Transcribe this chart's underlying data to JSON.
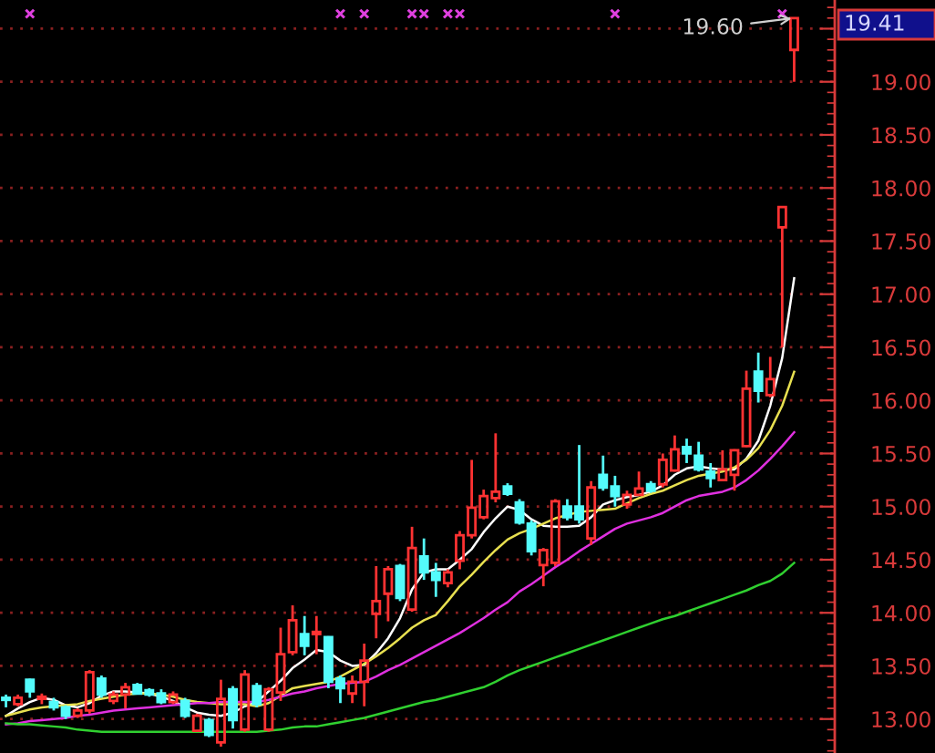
{
  "chart_data": {
    "type": "candlestick",
    "categories": [
      null,
      null,
      null,
      null,
      null,
      null,
      null,
      null,
      null,
      null,
      null,
      null,
      null,
      null,
      null,
      null,
      null,
      null,
      null,
      null,
      null,
      null,
      null,
      null,
      null,
      null,
      null,
      null,
      null,
      null,
      null,
      null,
      null,
      null,
      null,
      null,
      null,
      null,
      null,
      null,
      null,
      null,
      null,
      null,
      null,
      null,
      null,
      null,
      null,
      null,
      null,
      null,
      null,
      null,
      null,
      null,
      null,
      null,
      null,
      null,
      null,
      null,
      null,
      null,
      null,
      null,
      null
    ],
    "ohlc": [
      [
        13.2,
        13.23,
        13.11,
        13.18
      ],
      [
        13.14,
        13.23,
        13.12,
        13.2
      ],
      [
        13.37,
        13.38,
        13.2,
        13.26
      ],
      [
        13.19,
        13.24,
        13.14,
        13.21
      ],
      [
        13.16,
        13.2,
        13.08,
        13.11
      ],
      [
        13.11,
        13.13,
        13.0,
        13.03
      ],
      [
        13.03,
        13.1,
        13.01,
        13.08
      ],
      [
        13.08,
        13.46,
        13.05,
        13.44
      ],
      [
        13.38,
        13.41,
        13.2,
        13.23
      ],
      [
        13.17,
        13.26,
        13.14,
        13.23
      ],
      [
        13.23,
        13.34,
        13.1,
        13.3
      ],
      [
        13.32,
        13.34,
        13.23,
        13.24
      ],
      [
        13.27,
        13.29,
        13.21,
        13.23
      ],
      [
        13.24,
        13.28,
        13.14,
        13.16
      ],
      [
        13.16,
        13.26,
        13.14,
        13.23
      ],
      [
        13.17,
        13.2,
        13.01,
        13.03
      ],
      [
        12.89,
        13.05,
        12.88,
        13.03
      ],
      [
        12.99,
        13.01,
        12.83,
        12.85
      ],
      [
        12.78,
        13.37,
        12.74,
        13.19
      ],
      [
        13.28,
        13.31,
        12.91,
        12.99
      ],
      [
        12.9,
        13.46,
        12.88,
        13.42
      ],
      [
        13.31,
        13.34,
        13.11,
        13.14
      ],
      [
        12.9,
        13.3,
        12.88,
        13.28
      ],
      [
        13.25,
        13.86,
        13.17,
        13.61
      ],
      [
        13.63,
        14.07,
        13.6,
        13.93
      ],
      [
        13.8,
        13.97,
        13.6,
        13.69
      ],
      [
        13.8,
        13.97,
        13.61,
        13.82
      ],
      [
        13.77,
        13.78,
        13.29,
        13.35
      ],
      [
        13.38,
        13.41,
        13.15,
        13.29
      ],
      [
        13.24,
        13.41,
        13.15,
        13.35
      ],
      [
        13.35,
        13.71,
        13.12,
        13.55
      ],
      [
        13.99,
        14.44,
        13.76,
        14.11
      ],
      [
        14.18,
        14.44,
        13.92,
        14.41
      ],
      [
        14.44,
        14.46,
        14.11,
        14.14
      ],
      [
        14.03,
        14.81,
        14.01,
        14.61
      ],
      [
        14.53,
        14.7,
        14.31,
        14.38
      ],
      [
        14.38,
        14.47,
        14.15,
        14.31
      ],
      [
        14.28,
        14.41,
        14.24,
        14.38
      ],
      [
        14.49,
        14.77,
        14.41,
        14.73
      ],
      [
        14.73,
        15.44,
        14.7,
        14.99
      ],
      [
        14.9,
        15.16,
        14.88,
        15.1
      ],
      [
        15.08,
        15.69,
        15.04,
        15.14
      ],
      [
        15.19,
        15.22,
        15.1,
        15.12
      ],
      [
        15.04,
        15.07,
        14.83,
        14.85
      ],
      [
        14.84,
        14.87,
        14.54,
        14.58
      ],
      [
        14.45,
        14.61,
        14.25,
        14.59
      ],
      [
        14.47,
        15.07,
        14.44,
        15.05
      ],
      [
        15.0,
        15.07,
        14.87,
        14.9
      ],
      [
        15.0,
        15.58,
        14.84,
        14.88
      ],
      [
        14.7,
        15.24,
        14.64,
        15.18
      ],
      [
        15.3,
        15.48,
        15.15,
        15.18
      ],
      [
        15.19,
        15.29,
        15.0,
        15.1
      ],
      [
        15.02,
        15.15,
        14.98,
        15.11
      ],
      [
        15.11,
        15.33,
        15.1,
        15.17
      ],
      [
        15.21,
        15.24,
        15.13,
        15.15
      ],
      [
        15.21,
        15.5,
        15.18,
        15.44
      ],
      [
        15.34,
        15.67,
        15.33,
        15.54
      ],
      [
        15.56,
        15.64,
        15.41,
        15.5
      ],
      [
        15.48,
        15.61,
        15.33,
        15.35
      ],
      [
        15.33,
        15.41,
        15.18,
        15.27
      ],
      [
        15.25,
        15.53,
        15.24,
        15.35
      ],
      [
        15.3,
        15.54,
        15.15,
        15.53
      ],
      [
        15.57,
        16.28,
        15.56,
        16.11
      ],
      [
        16.27,
        16.45,
        15.98,
        16.09
      ],
      [
        16.05,
        16.41,
        16.03,
        16.2
      ],
      [
        17.63,
        17.82,
        16.5,
        17.82
      ],
      [
        19.3,
        19.6,
        19.0,
        19.6
      ]
    ],
    "colors": [
      "#54fcfc",
      "#ff3232",
      "#54fcfc",
      "#ff3232",
      "#54fcfc",
      "#54fcfc",
      "#ff3232",
      "#ff3232",
      "#54fcfc",
      "#ff3232",
      "#ff3232",
      "#54fcfc",
      "#54fcfc",
      "#54fcfc",
      "#ff3232",
      "#54fcfc",
      "#ff3232",
      "#54fcfc",
      "#ff3232",
      "#54fcfc",
      "#ff3232",
      "#54fcfc",
      "#ff3232",
      "#ff3232",
      "#ff3232",
      "#54fcfc",
      "#ff3232",
      "#54fcfc",
      "#54fcfc",
      "#ff3232",
      "#ff3232",
      "#ff3232",
      "#ff3232",
      "#54fcfc",
      "#ff3232",
      "#54fcfc",
      "#54fcfc",
      "#ff3232",
      "#ff3232",
      "#ff3232",
      "#ff3232",
      "#ff3232",
      "#54fcfc",
      "#54fcfc",
      "#54fcfc",
      "#ff3232",
      "#ff3232",
      "#54fcfc",
      "#54fcfc",
      "#ff3232",
      "#54fcfc",
      "#54fcfc",
      "#ff3232",
      "#ff3232",
      "#54fcfc",
      "#ff3232",
      "#ff3232",
      "#54fcfc",
      "#54fcfc",
      "#54fcfc",
      "#ff3232",
      "#ff3232",
      "#ff3232",
      "#54fcfc",
      "#ff3232",
      "#ff3232",
      "#ff3232"
    ],
    "series": [
      {
        "type": "line",
        "color": "#ffffff",
        "values": [
          13.03,
          13.1,
          13.16,
          13.2,
          13.18,
          13.13,
          13.11,
          13.15,
          13.22,
          13.26,
          13.26,
          13.25,
          13.24,
          13.21,
          13.17,
          13.11,
          13.06,
          13.04,
          13.03,
          13.06,
          13.12,
          13.16,
          13.26,
          13.36,
          13.48,
          13.56,
          13.65,
          13.63,
          13.55,
          13.5,
          13.51,
          13.62,
          13.76,
          13.95,
          14.22,
          14.38,
          14.41,
          14.41,
          14.5,
          14.6,
          14.76,
          14.89,
          15.0,
          14.97,
          14.88,
          14.82,
          14.81,
          14.81,
          14.82,
          14.9,
          15.02,
          15.06,
          15.09,
          15.11,
          15.14,
          15.2,
          15.3,
          15.36,
          15.38,
          15.36,
          15.35,
          15.35,
          15.45,
          15.62,
          15.95,
          16.4,
          17.15
        ]
      },
      {
        "type": "line",
        "color": "#e8e050",
        "values": [
          13.03,
          13.06,
          13.09,
          13.11,
          13.12,
          13.13,
          13.14,
          13.17,
          13.19,
          13.21,
          13.23,
          13.24,
          13.24,
          13.23,
          13.21,
          13.18,
          13.16,
          13.15,
          13.14,
          13.14,
          13.14,
          13.12,
          13.15,
          13.22,
          13.29,
          13.31,
          13.33,
          13.35,
          13.4,
          13.46,
          13.52,
          13.59,
          13.67,
          13.76,
          13.86,
          13.93,
          13.98,
          14.11,
          14.25,
          14.36,
          14.48,
          14.59,
          14.69,
          14.75,
          14.79,
          14.84,
          14.89,
          14.92,
          14.95,
          14.96,
          14.97,
          14.98,
          15.03,
          15.08,
          15.12,
          15.15,
          15.2,
          15.25,
          15.29,
          15.31,
          15.33,
          15.37,
          15.44,
          15.55,
          15.72,
          15.95,
          16.27
        ]
      },
      {
        "type": "line",
        "color": "#e030e0",
        "values": [
          12.95,
          12.96,
          12.98,
          12.99,
          13.0,
          13.01,
          13.03,
          13.04,
          13.06,
          13.08,
          13.09,
          13.1,
          13.11,
          13.12,
          13.13,
          13.14,
          13.15,
          13.15,
          13.16,
          13.16,
          13.16,
          13.16,
          13.18,
          13.21,
          13.24,
          13.26,
          13.29,
          13.31,
          13.33,
          13.34,
          13.35,
          13.4,
          13.46,
          13.51,
          13.57,
          13.63,
          13.69,
          13.75,
          13.81,
          13.88,
          13.95,
          14.03,
          14.1,
          14.2,
          14.27,
          14.35,
          14.43,
          14.5,
          14.58,
          14.65,
          14.72,
          14.79,
          14.84,
          14.87,
          14.9,
          14.94,
          15.0,
          15.06,
          15.1,
          15.12,
          15.14,
          15.18,
          15.25,
          15.34,
          15.45,
          15.57,
          15.7
        ]
      },
      {
        "type": "line",
        "color": "#30d030",
        "values": [
          12.96,
          12.95,
          12.95,
          12.94,
          12.93,
          12.92,
          12.9,
          12.89,
          12.88,
          12.88,
          12.88,
          12.88,
          12.88,
          12.88,
          12.88,
          12.88,
          12.88,
          12.88,
          12.88,
          12.88,
          12.88,
          12.88,
          12.89,
          12.9,
          12.92,
          12.93,
          12.93,
          12.95,
          12.97,
          12.99,
          13.01,
          13.04,
          13.07,
          13.1,
          13.13,
          13.16,
          13.18,
          13.21,
          13.24,
          13.27,
          13.3,
          13.35,
          13.41,
          13.46,
          13.5,
          13.54,
          13.58,
          13.62,
          13.66,
          13.7,
          13.74,
          13.78,
          13.82,
          13.86,
          13.9,
          13.94,
          13.97,
          14.01,
          14.05,
          14.09,
          14.13,
          14.17,
          14.21,
          14.26,
          14.3,
          14.37,
          14.47
        ]
      },
      {
        "type": "scatter",
        "color": "#e040e0",
        "marker": "cross",
        "values": [
          null,
          null,
          19.64,
          null,
          null,
          null,
          null,
          null,
          null,
          null,
          null,
          null,
          null,
          null,
          null,
          null,
          null,
          null,
          null,
          null,
          null,
          null,
          null,
          null,
          null,
          null,
          null,
          null,
          19.64,
          null,
          19.64,
          null,
          null,
          null,
          19.64,
          19.64,
          null,
          19.64,
          19.64,
          null,
          null,
          null,
          null,
          null,
          null,
          null,
          null,
          null,
          null,
          null,
          null,
          19.64,
          null,
          null,
          null,
          null,
          null,
          null,
          null,
          null,
          null,
          null,
          null,
          null,
          null,
          19.64,
          null
        ]
      }
    ],
    "ylim": [
      12.68,
      19.77
    ],
    "yticks": [
      {
        "value": 13,
        "label": "13.00"
      },
      {
        "value": 13.5,
        "label": "13.50"
      },
      {
        "value": 14,
        "label": "14.00"
      },
      {
        "value": 14.5,
        "label": "14.50"
      },
      {
        "value": 15,
        "label": "15.00"
      },
      {
        "value": 15.5,
        "label": "15.50"
      },
      {
        "value": 16,
        "label": "16.00"
      },
      {
        "value": 16.5,
        "label": "16.50"
      },
      {
        "value": 17,
        "label": "17.00"
      },
      {
        "value": 17.5,
        "label": "17.50"
      },
      {
        "value": 18,
        "label": "18.00"
      },
      {
        "value": 18.5,
        "label": "18.50"
      },
      {
        "value": 19,
        "label": "19.00"
      },
      {
        "value": 19.5,
        "label": null
      }
    ],
    "grid": "y",
    "annotations": [
      "19.60",
      "19.41"
    ]
  }
}
